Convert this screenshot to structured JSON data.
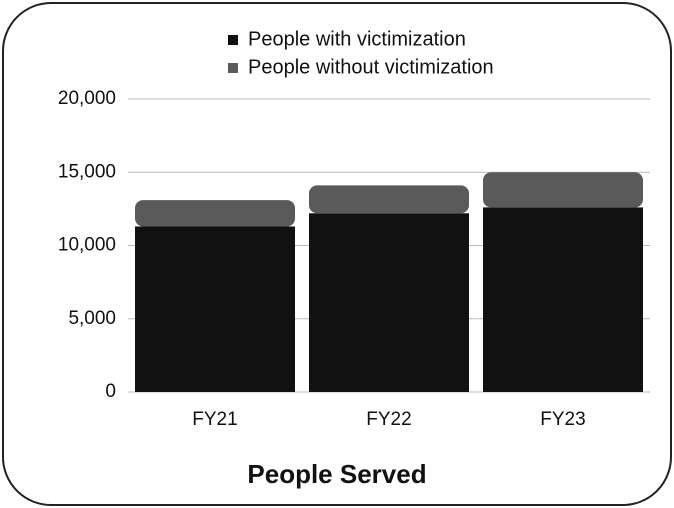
{
  "chart_data": {
    "type": "stacked_bar",
    "title": "People Served",
    "categories": [
      "FY21",
      "FY22",
      "FY23"
    ],
    "series": [
      {
        "name": "People with victimization",
        "color": "#111111",
        "values": [
          11300,
          12200,
          12600
        ]
      },
      {
        "name": "People without victimization",
        "color": "#5a5a5a",
        "values": [
          1800,
          1900,
          2400
        ]
      }
    ],
    "ylim": [
      0,
      20000
    ],
    "yticks": [
      0,
      {
        "value": 5000,
        "label": "5,000"
      },
      {
        "value": 10000,
        "label": "10,000"
      },
      {
        "value": 15000,
        "label": "15,000"
      },
      {
        "value": 20000,
        "label": "20,000"
      }
    ],
    "grid": true,
    "legend": "top"
  }
}
